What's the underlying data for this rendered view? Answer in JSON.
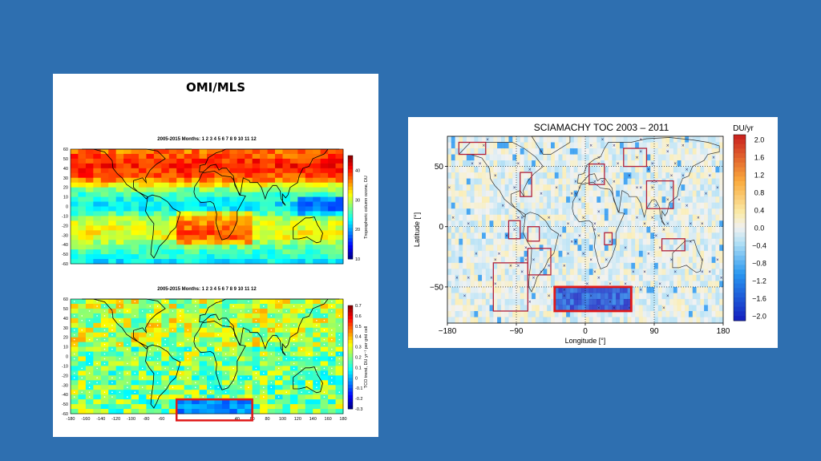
{
  "slide": {
    "title": "OMI/MLS"
  },
  "colors": {
    "background": "#2e6fb0",
    "box": "#e01818"
  },
  "chart_data": [
    {
      "type": "heatmap",
      "title": "2005-2015  Months:  1  2  3  4  5  6  7  8  9  10  11  12",
      "colorbar_label": "Tropospheric column ozone, DU",
      "colorbar_range": [
        10,
        45
      ],
      "colorbar_ticks": [
        "40",
        "30",
        "20",
        "10"
      ],
      "x_ticks": [],
      "y_ticks": [
        "60",
        "50",
        "40",
        "30",
        "20",
        "10",
        "0",
        "-10",
        "-20",
        "-30",
        "-40",
        "-50",
        "-60"
      ],
      "xlim": [
        -180,
        180
      ],
      "ylim": [
        -60,
        60
      ],
      "zonal_profile": {
        "lat": [
          -60,
          -45,
          -30,
          -15,
          0,
          15,
          30,
          45,
          60
        ],
        "value": [
          22,
          26,
          32,
          30,
          22,
          26,
          38,
          40,
          36
        ]
      }
    },
    {
      "type": "heatmap",
      "title": "2005-2015  Months:  1  2  3  4  5  6  7  8  9  10  11  12",
      "colorbar_label": "TCO trend, DU yr⁻¹ per grid cell",
      "colorbar_range": [
        -0.3,
        0.7
      ],
      "colorbar_ticks": [
        "0.7",
        "0.6",
        "0.5",
        "0.4",
        "0.3",
        "0.2",
        "0.1",
        "0",
        "-0.1",
        "-0.2",
        "-0.3"
      ],
      "x_ticks": [
        "-180",
        "-160",
        "-140",
        "-120",
        "-100",
        "-80",
        "-60",
        "40",
        "60",
        "80",
        "100",
        "120",
        "140",
        "160",
        "180"
      ],
      "y_ticks": [
        "60",
        "50",
        "40",
        "30",
        "20",
        "10",
        "0",
        "-10",
        "-20",
        "-30",
        "-40",
        "-50",
        "-60"
      ],
      "xlim": [
        -180,
        180
      ],
      "ylim": [
        -60,
        60
      ],
      "highlight_box": {
        "lon": [
          -40,
          60
        ],
        "lat": [
          -67,
          -45
        ]
      }
    },
    {
      "type": "heatmap",
      "title": "SCIAMACHY TOC 2003 – 2011",
      "xlabel": "Longitude [°]",
      "ylabel": "Latitude [°]",
      "colorbar_unit": "DU/yr",
      "colorbar_range": [
        -2.0,
        2.0
      ],
      "colorbar_ticks": [
        "2.0",
        "1.6",
        "1.2",
        "0.8",
        "0.4",
        "0.0",
        "−0.4",
        "−0.8",
        "−1.2",
        "−1.6",
        "−2.0"
      ],
      "x_ticks": [
        "−180",
        "−90",
        "0",
        "90",
        "180"
      ],
      "y_ticks": [
        "50",
        "0",
        "−50"
      ],
      "xlim": [
        -180,
        180
      ],
      "ylim": [
        -80,
        75
      ],
      "boxes": [
        {
          "lon": [
            -165,
            -130
          ],
          "lat": [
            60,
            70
          ]
        },
        {
          "lon": [
            -85,
            -70
          ],
          "lat": [
            25,
            45
          ]
        },
        {
          "lon": [
            -100,
            -85
          ],
          "lat": [
            -10,
            5
          ]
        },
        {
          "lon": [
            -75,
            -60
          ],
          "lat": [
            -12,
            0
          ]
        },
        {
          "lon": [
            -75,
            -45
          ],
          "lat": [
            -40,
            -18
          ]
        },
        {
          "lon": [
            -120,
            -75
          ],
          "lat": [
            -70,
            -30
          ]
        },
        {
          "lon": [
            5,
            25
          ],
          "lat": [
            35,
            52
          ]
        },
        {
          "lon": [
            50,
            80
          ],
          "lat": [
            50,
            65
          ]
        },
        {
          "lon": [
            80,
            115
          ],
          "lat": [
            15,
            38
          ]
        },
        {
          "lon": [
            25,
            35
          ],
          "lat": [
            -15,
            -5
          ]
        },
        {
          "lon": [
            100,
            130
          ],
          "lat": [
            -20,
            -10
          ]
        }
      ],
      "highlight_box": {
        "lon": [
          -40,
          60
        ],
        "lat": [
          -70,
          -50
        ]
      }
    }
  ]
}
